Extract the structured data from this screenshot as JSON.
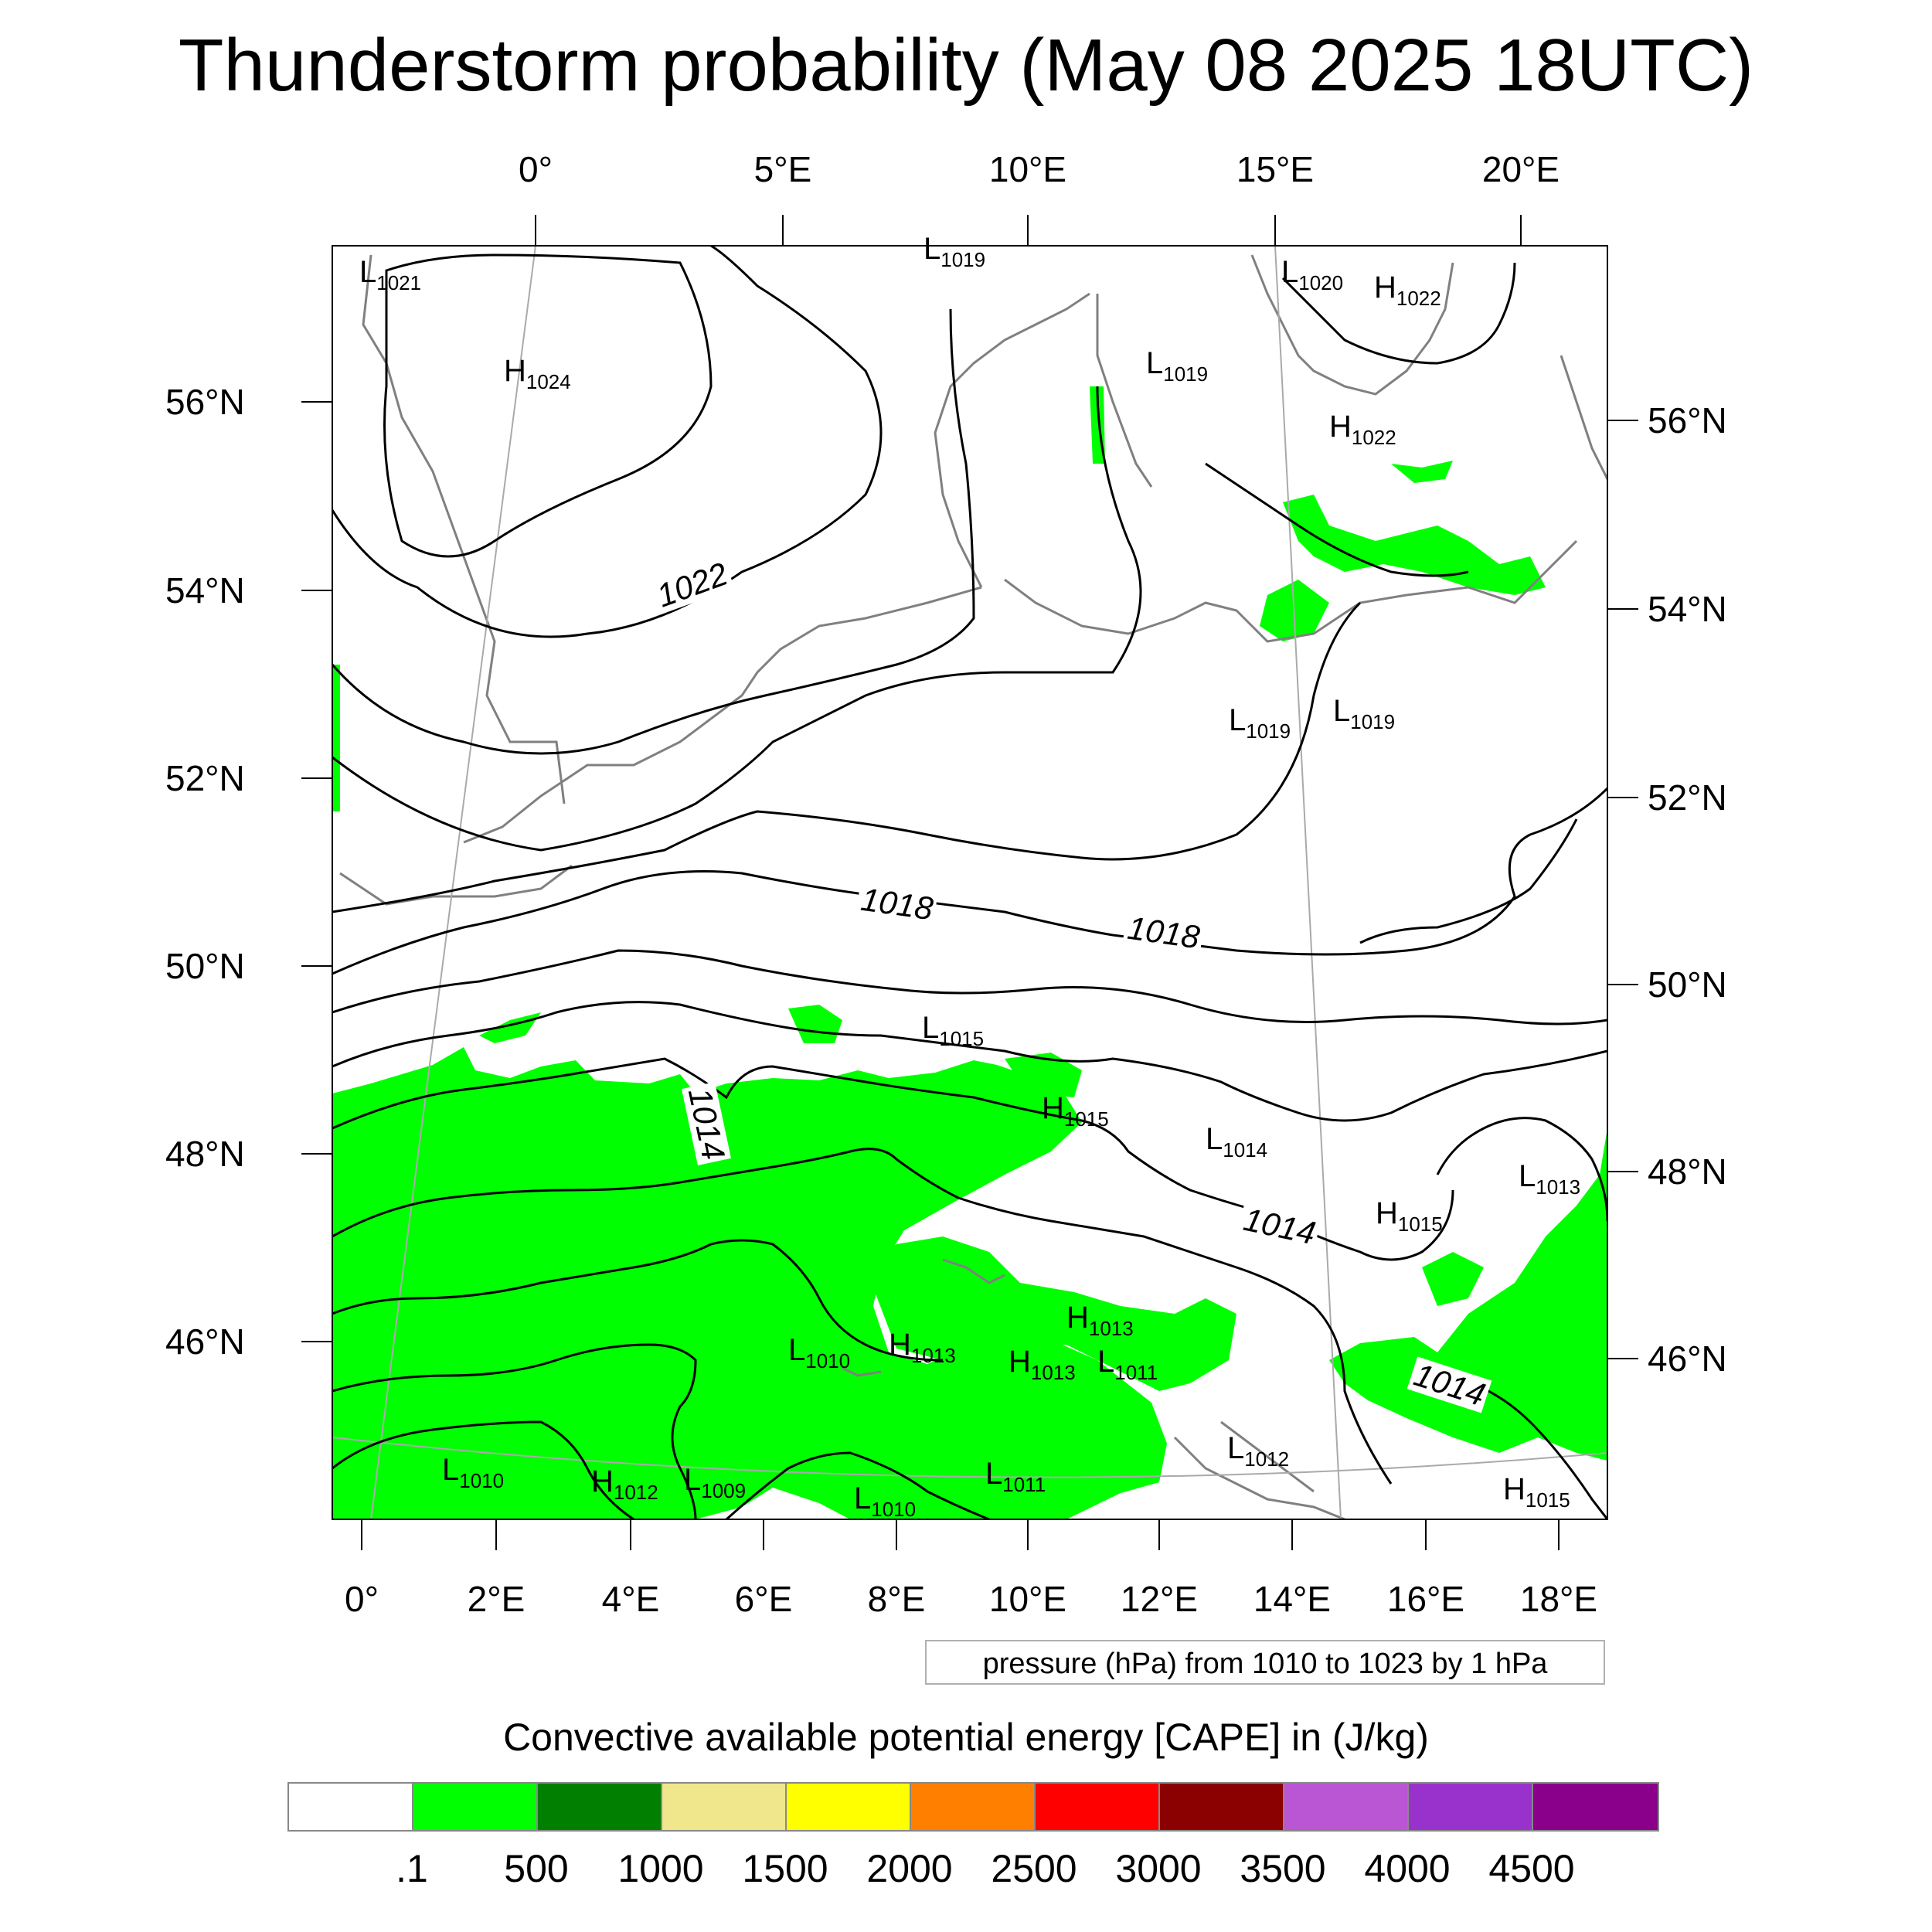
{
  "title": "Thunderstorm probability (May 08 2025 18UTC)",
  "map": {
    "top_lon_labels": [
      "0°",
      "5°E",
      "10°E",
      "15°E",
      "20°E"
    ],
    "bottom_lon_labels": [
      "0°",
      "2°E",
      "4°E",
      "6°E",
      "8°E",
      "10°E",
      "12°E",
      "14°E",
      "16°E",
      "18°E"
    ],
    "left_lat_labels": [
      "56°N",
      "54°N",
      "52°N",
      "50°N",
      "48°N",
      "46°N"
    ],
    "right_lat_labels": [
      "56°N",
      "54°N",
      "52°N",
      "50°N",
      "48°N",
      "46°N"
    ],
    "contour_labels": [
      "1022",
      "1018",
      "1018",
      "1014",
      "1014",
      "1014"
    ],
    "pressure_systems": [
      {
        "kind": "L",
        "value": "1021"
      },
      {
        "kind": "H",
        "value": "1024"
      },
      {
        "kind": "L",
        "value": "1019"
      },
      {
        "kind": "L",
        "value": "1020"
      },
      {
        "kind": "H",
        "value": "1022"
      },
      {
        "kind": "L",
        "value": "1019"
      },
      {
        "kind": "H",
        "value": "1022"
      },
      {
        "kind": "L",
        "value": "1019"
      },
      {
        "kind": "L",
        "value": "1019"
      },
      {
        "kind": "L",
        "value": "1015"
      },
      {
        "kind": "H",
        "value": "1015"
      },
      {
        "kind": "L",
        "value": "1014"
      },
      {
        "kind": "L",
        "value": "1013"
      },
      {
        "kind": "H",
        "value": "1015"
      },
      {
        "kind": "H",
        "value": "1013"
      },
      {
        "kind": "L",
        "value": "1010"
      },
      {
        "kind": "H",
        "value": "1013"
      },
      {
        "kind": "H",
        "value": "1013"
      },
      {
        "kind": "L",
        "value": "1011"
      },
      {
        "kind": "L",
        "value": "1012"
      },
      {
        "kind": "L",
        "value": "1010"
      },
      {
        "kind": "H",
        "value": "1012"
      },
      {
        "kind": "L",
        "value": "1009"
      },
      {
        "kind": "L",
        "value": "1010"
      },
      {
        "kind": "L",
        "value": "1011"
      },
      {
        "kind": "H",
        "value": "1015"
      }
    ],
    "pressure_note": "pressure (hPa) from 1010 to 1023 by 1 hPa",
    "fill_color": "#00ff00",
    "contour_color": "#000000",
    "coast_color": "#808080"
  },
  "colorbar": {
    "title": "Convective available potential energy [CAPE] in (J/kg)",
    "colors": [
      "#ffffff",
      "#00ff00",
      "#007f00",
      "#f0e68c",
      "#ffff00",
      "#ff8000",
      "#ff0000",
      "#8b0000",
      "#ba55d3",
      "#9932cc",
      "#8b008b"
    ],
    "labels": [
      ".1",
      "500",
      "1000",
      "1500",
      "2000",
      "2500",
      "3000",
      "3500",
      "4000",
      "4500"
    ]
  }
}
